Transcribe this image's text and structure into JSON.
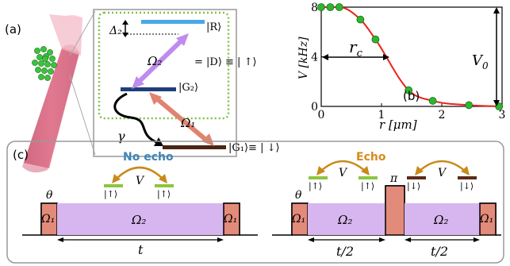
{
  "panel_a": {
    "label": "(a)",
    "level_R": "|R⟩",
    "level_G2": "|G₂⟩",
    "level_G1": "|G₁⟩≡ | ↓⟩",
    "eq_D": "= |D⟩ ≡ | ↑⟩",
    "omega2": "Ω₂",
    "omega1": "Ω₁",
    "delta2": "Δ₂",
    "gamma": "γ",
    "colors": {
      "rydberg": "#4aa8e8",
      "g2": "#1f3f7a",
      "g1": "#4a2414",
      "omega2_arrow": "#c08bef",
      "omega1_arrow": "#e0836f",
      "dotted_box": "#7cc242"
    }
  },
  "panel_b": {
    "label": "(b)",
    "r_c": "r",
    "r_c_sub": "c",
    "V0": "V",
    "V0_sub": "0"
  },
  "chart_data": {
    "type": "scatter",
    "xlabel": "r [μm]",
    "ylabel": "V [kHz]",
    "x_ticks": [
      "0",
      "1",
      "2",
      "3"
    ],
    "y_ticks": [
      "0",
      "4",
      "8"
    ],
    "xlim": [
      0,
      3
    ],
    "ylim": [
      0,
      8
    ],
    "points": [
      {
        "x": 0.0,
        "y": 8.0
      },
      {
        "x": 0.15,
        "y": 8.0
      },
      {
        "x": 0.3,
        "y": 8.0
      },
      {
        "x": 0.65,
        "y": 7.0
      },
      {
        "x": 0.9,
        "y": 5.4
      },
      {
        "x": 1.45,
        "y": 1.3
      },
      {
        "x": 1.85,
        "y": 0.45
      },
      {
        "x": 2.45,
        "y": 0.1
      },
      {
        "x": 2.95,
        "y": 0.0
      }
    ],
    "fit_color": "#e8231c",
    "point_color": "#2fb52f"
  },
  "panel_c": {
    "label": "(c)",
    "no_echo_title": "No echo",
    "echo_title": "Echo",
    "theta": "θ",
    "pi": "π",
    "omega1": "Ω₁",
    "omega2": "Ω₂",
    "V": "V",
    "up_ket": "|↑⟩",
    "down_ket": "|↓⟩",
    "t": "t",
    "t_half": "t/2",
    "colors": {
      "no_echo": "#3d86b5",
      "echo": "#d98a1c",
      "pulse1": "#e38b7a",
      "pulse2": "#d7b6ef",
      "arc": "#c88a1a",
      "up_bar": "#8cc63f",
      "down_bar": "#5a2a18"
    }
  }
}
